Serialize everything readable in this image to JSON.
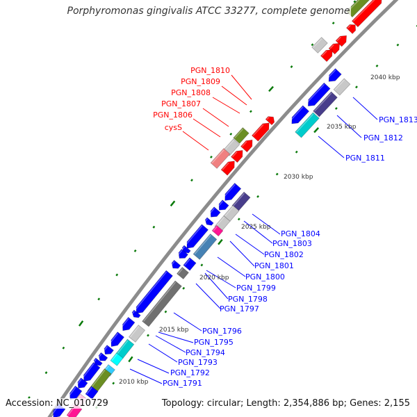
{
  "title": "Porphyromonas gingivalis ATCC 33277, complete genome",
  "footer": {
    "accession": "Accession: NC_010729",
    "topology": "Topology: circular; Length: 2,354,886 bp; Genes: 2,155"
  },
  "kbp_labels": [
    "2040 kbp",
    "2035 kbp",
    "2030 kbp",
    "2025 kbp",
    "2020 kbp",
    "2015 kbp",
    "2010 kbp"
  ],
  "forward_labels": [
    "PGN_1810",
    "PGN_1809",
    "PGN_1808",
    "PGN_1807",
    "PGN_1806",
    "cysS"
  ],
  "reverse_labels": [
    "PGN_1813",
    "PGN_1812",
    "PGN_1811",
    "PGN_1804",
    "PGN_1803",
    "PGN_1802",
    "PGN_1801",
    "PGN_1800",
    "PGN_1799",
    "PGN_1798",
    "PGN_1797",
    "PGN_1796",
    "PGN_1795",
    "PGN_1794",
    "PGN_1793",
    "PGN_1792",
    "PGN_1791"
  ],
  "colors": {
    "forward_cds": "#ff0000",
    "reverse_cds": "#0000ff",
    "backbone": "#8c8c8c",
    "tick": "#0a7a0a",
    "forward_label": "#ff0000",
    "reverse_label": "#0000ff"
  }
}
